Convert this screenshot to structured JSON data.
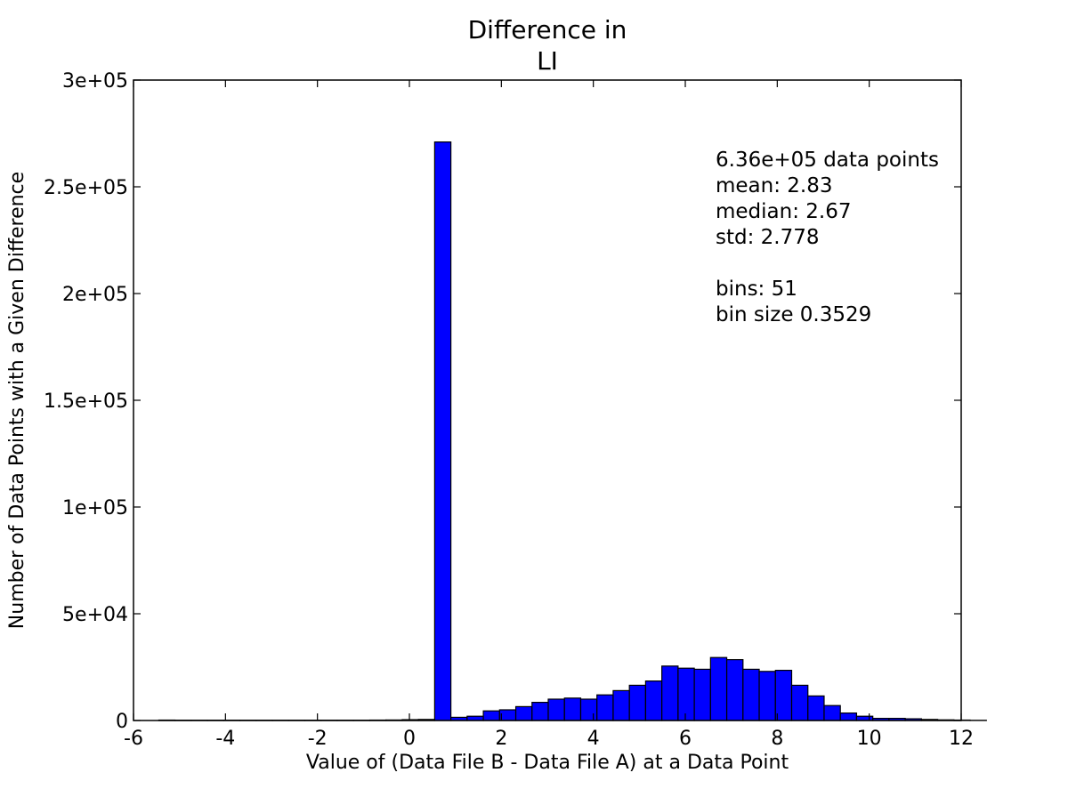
{
  "chart_data": {
    "type": "bar",
    "title_lines": [
      "Difference in",
      "LI"
    ],
    "xlabel": "Value of (Data File B - Data File A) at a Data Point",
    "ylabel": "Number of Data Points with a Given Difference",
    "xlim": [
      -6,
      12
    ],
    "ylim": [
      0,
      300000
    ],
    "xticks": [
      -6,
      -4,
      -2,
      0,
      2,
      4,
      6,
      8,
      10,
      12
    ],
    "xtick_labels": [
      "-6",
      "-4",
      "-2",
      "0",
      "2",
      "4",
      "6",
      "8",
      "10",
      "12"
    ],
    "yticks": [
      0,
      50000,
      100000,
      150000,
      200000,
      250000,
      300000
    ],
    "ytick_labels": [
      "0",
      "5e+04",
      "1e+05",
      "1.5e+05",
      "2e+05",
      "2.5e+05",
      "3e+05"
    ],
    "bar_color": "#0000ff",
    "bin_start": -5.45,
    "bin_width": 0.3529,
    "values": [
      200,
      150,
      150,
      150,
      150,
      150,
      150,
      150,
      150,
      150,
      150,
      150,
      150,
      200,
      250,
      400,
      500,
      271000,
      1500,
      2000,
      4500,
      5000,
      6500,
      8500,
      10000,
      10500,
      10000,
      12000,
      14000,
      16500,
      18500,
      25500,
      24500,
      24000,
      29500,
      28500,
      24000,
      23000,
      23500,
      16500,
      11500,
      7000,
      3500,
      2000,
      1000,
      1000,
      800,
      500,
      300,
      200,
      100
    ],
    "annotations": [
      "6.36e+05 data points",
      "mean: 2.83",
      "median: 2.67",
      "std: 2.778",
      "",
      "bins: 51",
      "bin size 0.3529"
    ]
  }
}
